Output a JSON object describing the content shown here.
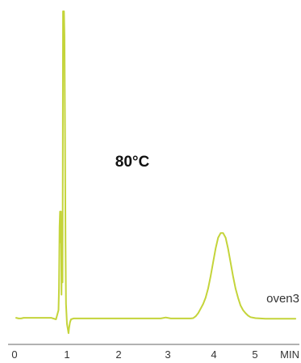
{
  "chart_data": {
    "type": "line",
    "annotation": "80°C",
    "series_label": "oven3",
    "xlabel": "MIN",
    "x_ticks": [
      "0",
      "1",
      "2",
      "3",
      "4",
      "5"
    ],
    "xlim": [
      0,
      6
    ],
    "ylim": [
      0,
      100
    ],
    "grid": false,
    "line_color": "#c4d43a",
    "axis_color": "#666666",
    "series": [
      {
        "x": [
          0.0,
          0.05,
          0.1,
          0.15,
          0.25,
          0.5,
          0.7,
          0.8,
          0.85,
          0.86,
          0.87,
          0.88,
          0.89,
          0.9,
          0.91,
          0.92,
          0.93,
          0.935,
          0.94,
          0.945,
          0.96,
          0.97,
          0.98,
          0.99,
          1.0,
          1.02,
          1.04,
          1.05,
          1.06,
          1.08,
          1.1,
          1.15,
          1.2,
          1.3,
          1.5,
          2.0,
          2.5,
          2.9,
          3.0,
          3.1,
          3.3,
          3.4,
          3.5,
          3.55,
          3.6,
          3.65,
          3.7,
          3.75,
          3.8,
          3.85,
          3.9,
          3.95,
          4.0,
          4.05,
          4.1,
          4.15,
          4.2,
          4.25,
          4.3,
          4.35,
          4.4,
          4.45,
          4.5,
          4.55,
          4.6,
          4.65,
          4.7,
          4.8,
          4.9,
          5.0,
          5.2,
          5.4,
          5.6
        ],
        "y": [
          0.5,
          0.3,
          0.3,
          0.5,
          0.5,
          0.5,
          0.5,
          0.0,
          3.0,
          10.0,
          30.0,
          35.0,
          25.0,
          35.0,
          8.0,
          30.0,
          12.0,
          50.0,
          100.0,
          100.0,
          100.0,
          92.0,
          60.0,
          25.0,
          5.0,
          -1.5,
          -3.5,
          -4.5,
          -3.0,
          -1.0,
          0.0,
          0.3,
          0.3,
          0.3,
          0.3,
          0.3,
          0.3,
          0.3,
          0.6,
          0.3,
          0.3,
          0.3,
          0.3,
          0.4,
          1.0,
          2.0,
          3.5,
          5.0,
          7.0,
          10.0,
          14.0,
          18.5,
          23.0,
          26.5,
          28.0,
          28.0,
          26.5,
          23.0,
          18.5,
          14.0,
          10.0,
          7.0,
          4.5,
          3.0,
          2.0,
          1.2,
          0.7,
          0.4,
          0.3,
          0.2,
          0.2,
          0.2,
          0.2
        ]
      }
    ]
  }
}
